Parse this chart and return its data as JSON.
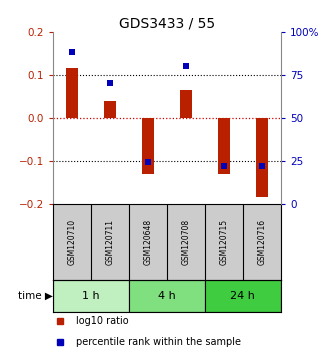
{
  "title": "GDS3433 / 55",
  "samples": [
    "GSM120710",
    "GSM120711",
    "GSM120648",
    "GSM120708",
    "GSM120715",
    "GSM120716"
  ],
  "log10_ratio": [
    0.115,
    0.04,
    -0.13,
    0.065,
    -0.13,
    -0.185
  ],
  "percentile_rank": [
    88,
    70,
    24,
    80,
    22,
    22
  ],
  "groups": [
    {
      "label": "1 h",
      "indices": [
        0,
        1
      ],
      "color": "#c0f0c0"
    },
    {
      "label": "4 h",
      "indices": [
        2,
        3
      ],
      "color": "#80e080"
    },
    {
      "label": "24 h",
      "indices": [
        4,
        5
      ],
      "color": "#40cc40"
    }
  ],
  "ylim_left": [
    -0.2,
    0.2
  ],
  "ylim_right": [
    0,
    100
  ],
  "yticks_left": [
    -0.2,
    -0.1,
    0,
    0.1,
    0.2
  ],
  "yticks_right": [
    0,
    25,
    50,
    75,
    100
  ],
  "bar_color": "#b82000",
  "dot_color": "#0000bb",
  "hline_color_zero": "#cc0000",
  "hline_color_grid": "#000000",
  "sample_box_color": "#cccccc",
  "bg_color": "#ffffff"
}
